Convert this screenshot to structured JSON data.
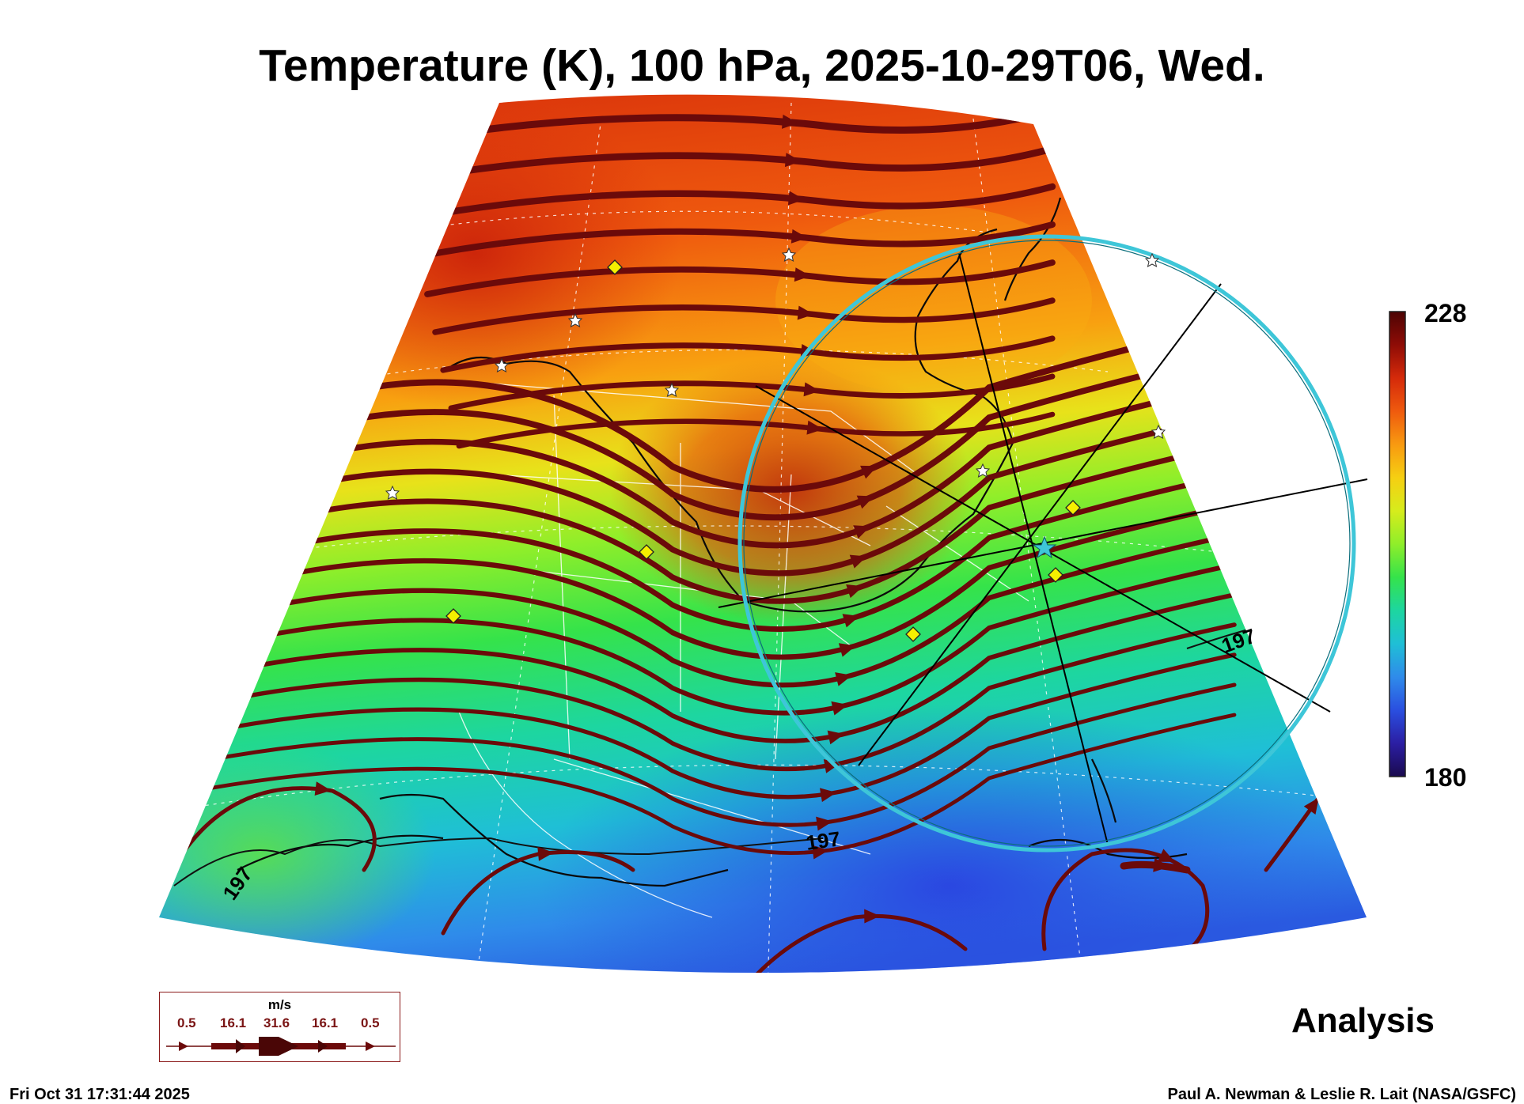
{
  "title": "Temperature (K), 100 hPa, 2025-10-29T06, Wed.",
  "colorbar": {
    "max_label": "228",
    "min_label": "180",
    "colors": [
      "#1a0a4e",
      "#2b1ea3",
      "#2a4fe0",
      "#2f8bea",
      "#1fbfd6",
      "#1dd6a0",
      "#35e34a",
      "#8fee2a",
      "#d6ec1c",
      "#f6cf12",
      "#f89a10",
      "#ef5a0e",
      "#d52a0a",
      "#8e0c06",
      "#4d0404"
    ]
  },
  "contour_labels": [
    "197",
    "197",
    "197"
  ],
  "wind_legend": {
    "unit": "m/s",
    "values": [
      "0.5",
      "16.1",
      "31.6",
      "16.1",
      "0.5"
    ]
  },
  "mode_label": "Analysis",
  "footer": {
    "timestamp": "Fri Oct 31 17:31:44 2025",
    "credit": "Paul A. Newman & Leslie R. Lait (NASA/GSFC)"
  },
  "colors": {
    "streamline": "#6b0a0a",
    "coastline": "#0a0a0a",
    "borders": "#ffffff",
    "circle": "#3ec6d8",
    "star_marker": "#ffffff",
    "diamond_marker": "#f5f000"
  }
}
